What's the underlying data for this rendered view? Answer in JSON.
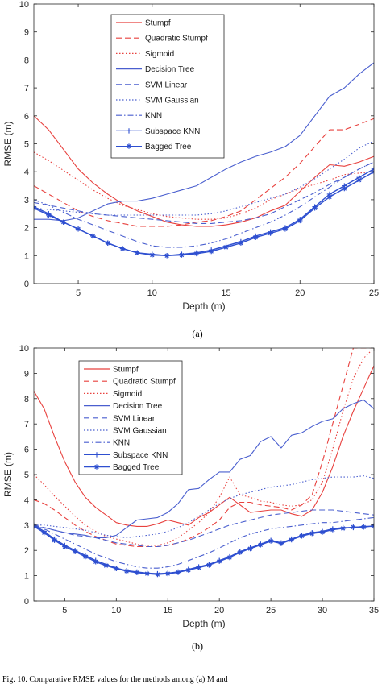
{
  "figure": {
    "caption_a": "(a)",
    "caption_b": "(b)",
    "footer": "Fig. 10.   Comparative RMSE values for the methods among (a) M and"
  },
  "chart_data": [
    {
      "type": "line",
      "xlabel": "Depth (m)",
      "ylabel": "RMSE (m)",
      "xlim": [
        2,
        25
      ],
      "ylim": [
        0,
        10
      ],
      "xticks": [
        5,
        10,
        15,
        20,
        25
      ],
      "yticks": [
        0,
        1,
        2,
        3,
        4,
        5,
        6,
        7,
        8,
        9,
        10
      ],
      "grid": false,
      "legend_position": "top-center",
      "x": [
        2,
        3,
        4,
        5,
        6,
        7,
        8,
        9,
        10,
        11,
        12,
        13,
        14,
        15,
        16,
        17,
        18,
        19,
        20,
        21,
        22,
        23,
        24,
        25
      ],
      "series": [
        {
          "name": "Stumpf",
          "color": "#e8413e",
          "style": "solid",
          "marker": "none",
          "values": [
            6.0,
            5.5,
            4.8,
            4.1,
            3.6,
            3.2,
            2.85,
            2.6,
            2.4,
            2.2,
            2.1,
            2.05,
            2.05,
            2.1,
            2.2,
            2.35,
            2.6,
            2.8,
            3.3,
            3.8,
            4.25,
            4.2,
            4.35,
            4.55
          ]
        },
        {
          "name": "Quadratic Stumpf",
          "color": "#e8413e",
          "style": "dashed",
          "marker": "none",
          "values": [
            3.5,
            3.2,
            2.9,
            2.6,
            2.4,
            2.25,
            2.15,
            2.05,
            2.05,
            2.05,
            2.1,
            2.2,
            2.25,
            2.4,
            2.6,
            3.0,
            3.4,
            3.8,
            4.3,
            4.9,
            5.5,
            5.5,
            5.7,
            5.9
          ]
        },
        {
          "name": "Sigmoid",
          "color": "#e8413e",
          "style": "dotted",
          "marker": "none",
          "values": [
            4.7,
            4.4,
            4.05,
            3.7,
            3.35,
            3.05,
            2.8,
            2.65,
            2.5,
            2.4,
            2.35,
            2.3,
            2.3,
            2.35,
            2.5,
            2.7,
            3.0,
            3.2,
            3.4,
            3.55,
            3.7,
            3.9,
            3.95,
            4.0
          ]
        },
        {
          "name": "Decision Tree",
          "color": "#4a5fcf",
          "style": "solid",
          "marker": "none",
          "values": [
            2.3,
            2.3,
            2.25,
            2.35,
            2.6,
            2.85,
            2.95,
            2.95,
            3.05,
            3.2,
            3.35,
            3.5,
            3.8,
            4.1,
            4.35,
            4.55,
            4.7,
            4.9,
            5.3,
            6.0,
            6.7,
            7.0,
            7.5,
            7.9
          ]
        },
        {
          "name": "SVM Linear",
          "color": "#4a5fcf",
          "style": "dashed",
          "marker": "none",
          "values": [
            2.9,
            2.8,
            2.7,
            2.6,
            2.5,
            2.45,
            2.4,
            2.35,
            2.3,
            2.25,
            2.2,
            2.15,
            2.15,
            2.2,
            2.25,
            2.35,
            2.5,
            2.75,
            3.0,
            3.25,
            3.55,
            3.8,
            4.1,
            4.35
          ]
        },
        {
          "name": "SVM Gaussian",
          "color": "#4a5fcf",
          "style": "dotted",
          "marker": "none",
          "values": [
            2.7,
            2.65,
            2.6,
            2.55,
            2.5,
            2.45,
            2.45,
            2.45,
            2.45,
            2.45,
            2.45,
            2.45,
            2.5,
            2.6,
            2.75,
            2.9,
            3.05,
            3.2,
            3.45,
            3.75,
            4.1,
            4.45,
            4.85,
            5.1
          ]
        },
        {
          "name": "KNN",
          "color": "#4a5fcf",
          "style": "dashdot",
          "marker": "none",
          "values": [
            3.0,
            2.8,
            2.55,
            2.3,
            2.1,
            1.9,
            1.7,
            1.5,
            1.35,
            1.3,
            1.3,
            1.35,
            1.45,
            1.6,
            1.8,
            2.0,
            2.2,
            2.45,
            2.75,
            3.1,
            3.45,
            3.8,
            4.1,
            4.35
          ]
        },
        {
          "name": "Subspace KNN",
          "color": "#2e4fd0",
          "style": "solid",
          "marker": "plus",
          "values": [
            2.75,
            2.5,
            2.2,
            1.95,
            1.7,
            1.45,
            1.25,
            1.1,
            1.05,
            1.0,
            1.05,
            1.1,
            1.2,
            1.35,
            1.5,
            1.7,
            1.85,
            2.0,
            2.3,
            2.75,
            3.2,
            3.5,
            3.8,
            4.1
          ]
        },
        {
          "name": "Bagged Tree",
          "color": "#2e4fd0",
          "style": "solid",
          "marker": "star",
          "values": [
            2.7,
            2.45,
            2.2,
            1.95,
            1.7,
            1.45,
            1.25,
            1.1,
            1.02,
            1.0,
            1.02,
            1.07,
            1.15,
            1.3,
            1.45,
            1.65,
            1.8,
            1.95,
            2.25,
            2.7,
            3.1,
            3.4,
            3.7,
            4.0
          ]
        }
      ]
    },
    {
      "type": "line",
      "xlabel": "Depth (m)",
      "ylabel": "RMSE (m)",
      "xlim": [
        2,
        35
      ],
      "ylim": [
        0,
        10
      ],
      "xticks": [
        5,
        10,
        15,
        20,
        25,
        30,
        35
      ],
      "yticks": [
        0,
        1,
        2,
        3,
        4,
        5,
        6,
        7,
        8,
        9,
        10
      ],
      "grid": false,
      "legend_position": "top-left",
      "x": [
        2,
        3,
        4,
        5,
        6,
        7,
        8,
        9,
        10,
        11,
        12,
        13,
        14,
        15,
        16,
        17,
        18,
        19,
        20,
        21,
        22,
        23,
        24,
        25,
        26,
        27,
        28,
        29,
        30,
        31,
        32,
        33,
        34,
        35
      ],
      "series": [
        {
          "name": "Stumpf",
          "color": "#e8413e",
          "style": "solid",
          "marker": "none",
          "values": [
            8.3,
            7.6,
            6.5,
            5.5,
            4.7,
            4.1,
            3.7,
            3.4,
            3.1,
            3.0,
            2.95,
            2.95,
            3.05,
            3.2,
            3.1,
            3.0,
            3.3,
            3.5,
            3.8,
            4.1,
            3.8,
            3.5,
            3.55,
            3.6,
            3.6,
            3.45,
            3.35,
            3.6,
            4.3,
            5.3,
            6.5,
            7.5,
            8.4,
            9.3
          ]
        },
        {
          "name": "Quadratic Stumpf",
          "color": "#e8413e",
          "style": "dashed",
          "marker": "none",
          "values": [
            4.0,
            3.85,
            3.6,
            3.3,
            3.0,
            2.75,
            2.55,
            2.4,
            2.25,
            2.2,
            2.15,
            2.15,
            2.15,
            2.2,
            2.3,
            2.45,
            2.65,
            2.9,
            3.2,
            3.7,
            3.9,
            3.9,
            3.8,
            3.75,
            3.7,
            3.6,
            3.8,
            4.2,
            5.5,
            7.0,
            8.5,
            10.0,
            10.0,
            10.0
          ]
        },
        {
          "name": "Sigmoid",
          "color": "#e8413e",
          "style": "dotted",
          "marker": "none",
          "values": [
            5.0,
            4.6,
            4.15,
            3.75,
            3.35,
            3.0,
            2.75,
            2.55,
            2.45,
            2.35,
            2.25,
            2.2,
            2.2,
            2.3,
            2.5,
            2.8,
            3.1,
            3.5,
            4.1,
            4.9,
            4.2,
            4.1,
            3.95,
            3.9,
            3.8,
            3.75,
            3.8,
            4.0,
            4.7,
            6.0,
            7.5,
            8.8,
            9.6,
            10.0
          ]
        },
        {
          "name": "Decision Tree",
          "color": "#4a5fcf",
          "style": "solid",
          "marker": "none",
          "values": [
            2.9,
            2.9,
            2.8,
            2.7,
            2.65,
            2.6,
            2.5,
            2.5,
            2.6,
            2.9,
            3.2,
            3.25,
            3.3,
            3.5,
            3.85,
            4.4,
            4.45,
            4.8,
            5.1,
            5.1,
            5.6,
            5.75,
            6.3,
            6.5,
            6.05,
            6.55,
            6.65,
            6.9,
            7.1,
            7.2,
            7.6,
            7.8,
            7.95,
            7.6
          ]
        },
        {
          "name": "SVM Linear",
          "color": "#4a5fcf",
          "style": "dashed",
          "marker": "none",
          "values": [
            3.0,
            2.9,
            2.8,
            2.7,
            2.6,
            2.55,
            2.5,
            2.4,
            2.3,
            2.25,
            2.2,
            2.15,
            2.15,
            2.2,
            2.3,
            2.4,
            2.55,
            2.7,
            2.85,
            3.0,
            3.1,
            3.2,
            3.3,
            3.4,
            3.45,
            3.5,
            3.55,
            3.6,
            3.6,
            3.6,
            3.55,
            3.5,
            3.45,
            3.4
          ]
        },
        {
          "name": "SVM Gaussian",
          "color": "#4a5fcf",
          "style": "dotted",
          "marker": "none",
          "values": [
            3.0,
            3.0,
            2.95,
            2.9,
            2.85,
            2.8,
            2.7,
            2.6,
            2.55,
            2.5,
            2.55,
            2.6,
            2.65,
            2.75,
            2.9,
            3.1,
            3.35,
            3.6,
            3.85,
            4.05,
            4.2,
            4.3,
            4.4,
            4.5,
            4.55,
            4.6,
            4.7,
            4.8,
            4.85,
            4.9,
            4.9,
            4.9,
            4.95,
            4.85
          ]
        },
        {
          "name": "KNN",
          "color": "#4a5fcf",
          "style": "dashdot",
          "marker": "none",
          "values": [
            3.0,
            2.85,
            2.65,
            2.45,
            2.25,
            2.05,
            1.85,
            1.7,
            1.55,
            1.45,
            1.35,
            1.3,
            1.3,
            1.35,
            1.45,
            1.6,
            1.75,
            1.9,
            2.1,
            2.3,
            2.5,
            2.65,
            2.75,
            2.85,
            2.9,
            2.95,
            3.0,
            3.05,
            3.1,
            3.1,
            3.15,
            3.2,
            3.25,
            3.3
          ]
        },
        {
          "name": "Subspace KNN",
          "color": "#2e4fd0",
          "style": "solid",
          "marker": "plus",
          "values": [
            3.0,
            2.75,
            2.45,
            2.2,
            2.0,
            1.8,
            1.6,
            1.45,
            1.3,
            1.2,
            1.15,
            1.1,
            1.08,
            1.1,
            1.15,
            1.25,
            1.35,
            1.45,
            1.6,
            1.75,
            1.95,
            2.1,
            2.25,
            2.4,
            2.3,
            2.45,
            2.6,
            2.7,
            2.75,
            2.85,
            2.9,
            2.9,
            2.95,
            2.95
          ]
        },
        {
          "name": "Bagged Tree",
          "color": "#2e4fd0",
          "style": "solid",
          "marker": "star",
          "values": [
            2.95,
            2.7,
            2.4,
            2.15,
            1.95,
            1.75,
            1.55,
            1.4,
            1.28,
            1.18,
            1.12,
            1.08,
            1.05,
            1.08,
            1.13,
            1.22,
            1.32,
            1.42,
            1.57,
            1.72,
            1.92,
            2.07,
            2.22,
            2.37,
            2.27,
            2.42,
            2.57,
            2.67,
            2.72,
            2.82,
            2.87,
            2.92,
            2.92,
            2.97
          ]
        }
      ]
    }
  ]
}
